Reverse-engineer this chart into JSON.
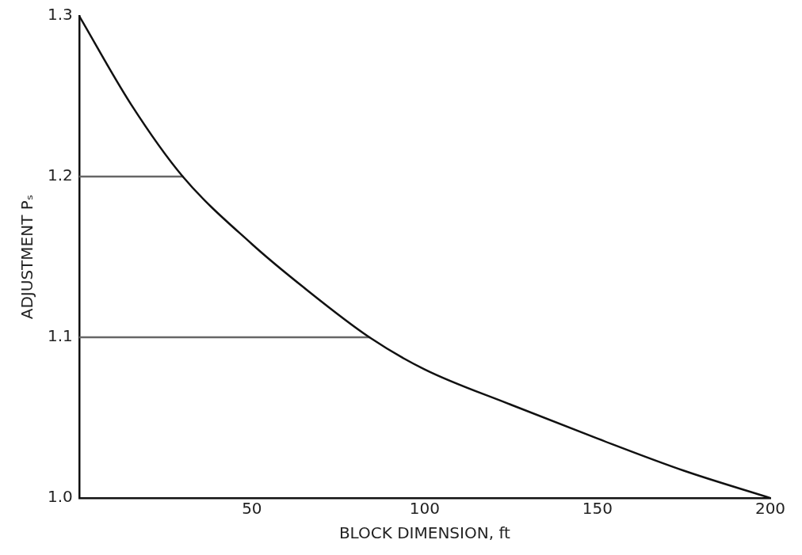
{
  "chart_data": {
    "type": "line",
    "xlabel": "BLOCK DIMENSION, ft",
    "ylabel": "ADJUSTMENT Pₛ",
    "series": [
      {
        "color": "#111111",
        "x": [
          0,
          15,
          30,
          50,
          65,
          84,
          100,
          125,
          150,
          175,
          200
        ],
        "values": [
          1.3,
          1.245,
          1.2,
          1.158,
          1.131,
          1.1,
          1.08,
          1.058,
          1.037,
          1.017,
          1.0
        ]
      },
      {
        "color": "#666666",
        "x": [
          0,
          30
        ],
        "values": [
          1.2,
          1.2
        ]
      },
      {
        "color": "#666666",
        "x": [
          0,
          84
        ],
        "values": [
          1.1,
          1.1
        ]
      }
    ],
    "xlim": [
      0,
      200
    ],
    "xticks": [
      50,
      100,
      150,
      200
    ],
    "ylim": [
      1.0,
      1.3
    ],
    "yticks": [
      {
        "value": 1.0,
        "label": "1.0"
      },
      {
        "value": 1.1,
        "label": "1.1"
      },
      {
        "value": 1.2,
        "label": "1.2"
      },
      {
        "value": 1.3,
        "label": "1.3"
      }
    ],
    "grid": false,
    "legend": false,
    "marker": "none",
    "line_style": "solid"
  }
}
